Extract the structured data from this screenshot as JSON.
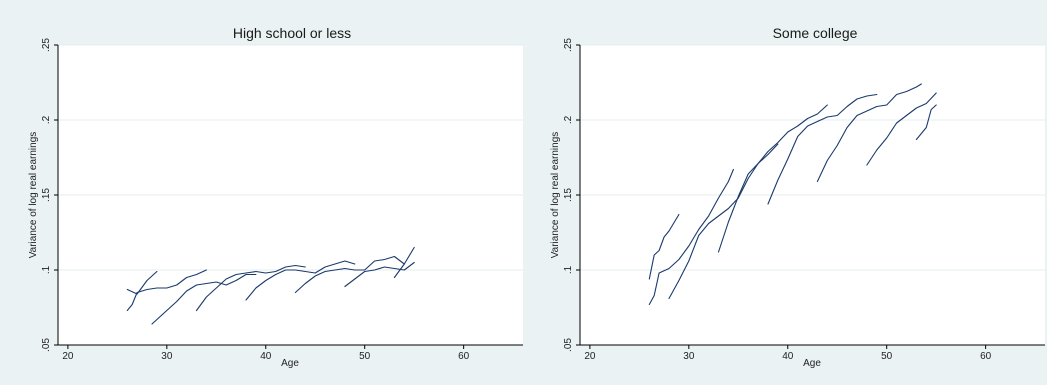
{
  "colors": {
    "page_bg": "#eaf2f3",
    "line": "#1a3a6b"
  },
  "chart_data": [
    {
      "type": "line",
      "title": "High school or less",
      "xlabel": "Age",
      "ylabel": "Variance of log real earnings",
      "xlim": [
        19,
        66
      ],
      "ylim": [
        0.05,
        0.25
      ],
      "xticks": [
        20,
        30,
        40,
        50,
        60
      ],
      "yticks": [
        0.05,
        0.1,
        0.15,
        0.2,
        0.25
      ],
      "xtick_labels": [
        "20",
        "30",
        "40",
        "50",
        "60"
      ],
      "ytick_labels": [
        ".05",
        ".1",
        ".15",
        ".2",
        ".25"
      ],
      "grid": true,
      "series": [
        {
          "points": [
            [
              26,
              0.087
            ],
            [
              27,
              0.084
            ],
            [
              28,
              0.093
            ],
            [
              29,
              0.099
            ]
          ]
        },
        {
          "points": [
            [
              26,
              0.073
            ],
            [
              26.5,
              0.077
            ],
            [
              27,
              0.085
            ],
            [
              28,
              0.087
            ],
            [
              29,
              0.088
            ],
            [
              30,
              0.088
            ],
            [
              31,
              0.09
            ],
            [
              32,
              0.095
            ],
            [
              33,
              0.097
            ],
            [
              34,
              0.1
            ]
          ]
        },
        {
          "points": [
            [
              28.5,
              0.064
            ],
            [
              30,
              0.073
            ],
            [
              31,
              0.079
            ],
            [
              32,
              0.086
            ],
            [
              33,
              0.09
            ],
            [
              34,
              0.091
            ],
            [
              35,
              0.092
            ],
            [
              36,
              0.09
            ],
            [
              37,
              0.093
            ],
            [
              38,
              0.097
            ],
            [
              39,
              0.097
            ]
          ]
        },
        {
          "points": [
            [
              33,
              0.073
            ],
            [
              34,
              0.082
            ],
            [
              35,
              0.088
            ],
            [
              36,
              0.094
            ],
            [
              37,
              0.097
            ],
            [
              38,
              0.098
            ],
            [
              39,
              0.099
            ],
            [
              40,
              0.098
            ],
            [
              41,
              0.099
            ],
            [
              42,
              0.102
            ],
            [
              43,
              0.103
            ],
            [
              44,
              0.102
            ]
          ]
        },
        {
          "points": [
            [
              38,
              0.08
            ],
            [
              39,
              0.088
            ],
            [
              40,
              0.093
            ],
            [
              41,
              0.097
            ],
            [
              42,
              0.1
            ],
            [
              43,
              0.1
            ],
            [
              44,
              0.099
            ],
            [
              45,
              0.098
            ],
            [
              46,
              0.102
            ],
            [
              47,
              0.104
            ],
            [
              48,
              0.106
            ],
            [
              49,
              0.104
            ]
          ]
        },
        {
          "points": [
            [
              43,
              0.085
            ],
            [
              44,
              0.091
            ],
            [
              45,
              0.096
            ],
            [
              46,
              0.099
            ],
            [
              47,
              0.1
            ],
            [
              48,
              0.101
            ],
            [
              49,
              0.1
            ],
            [
              50,
              0.1
            ],
            [
              51,
              0.106
            ],
            [
              52,
              0.107
            ],
            [
              53,
              0.109
            ],
            [
              54,
              0.104
            ]
          ]
        },
        {
          "points": [
            [
              48,
              0.089
            ],
            [
              49,
              0.094
            ],
            [
              50,
              0.099
            ],
            [
              51,
              0.1
            ],
            [
              52,
              0.102
            ],
            [
              53,
              0.101
            ],
            [
              54,
              0.1
            ],
            [
              55,
              0.105
            ]
          ]
        },
        {
          "points": [
            [
              53,
              0.095
            ],
            [
              54,
              0.104
            ],
            [
              55,
              0.115
            ]
          ]
        }
      ]
    },
    {
      "type": "line",
      "title": "Some college",
      "xlabel": "Age",
      "ylabel": "Variance of log real earnings",
      "xlim": [
        19,
        66
      ],
      "ylim": [
        0.05,
        0.25
      ],
      "xticks": [
        20,
        30,
        40,
        50,
        60
      ],
      "yticks": [
        0.05,
        0.1,
        0.15,
        0.2,
        0.25
      ],
      "xtick_labels": [
        "20",
        "30",
        "40",
        "50",
        "60"
      ],
      "ytick_labels": [
        ".05",
        ".1",
        ".15",
        ".2",
        ".25"
      ],
      "grid": true,
      "series": [
        {
          "points": [
            [
              26,
              0.094
            ],
            [
              26.5,
              0.11
            ],
            [
              27,
              0.113
            ],
            [
              27.5,
              0.122
            ],
            [
              28,
              0.126
            ],
            [
              29,
              0.137
            ]
          ]
        },
        {
          "points": [
            [
              26,
              0.077
            ],
            [
              26.5,
              0.083
            ],
            [
              27,
              0.098
            ],
            [
              28,
              0.101
            ],
            [
              29,
              0.107
            ],
            [
              30,
              0.116
            ],
            [
              31,
              0.127
            ],
            [
              32,
              0.136
            ],
            [
              33,
              0.148
            ],
            [
              34,
              0.159
            ],
            [
              34.5,
              0.167
            ]
          ]
        },
        {
          "points": [
            [
              28,
              0.081
            ],
            [
              29,
              0.093
            ],
            [
              30,
              0.106
            ],
            [
              31,
              0.123
            ],
            [
              32,
              0.131
            ],
            [
              33,
              0.136
            ],
            [
              34,
              0.141
            ],
            [
              35,
              0.148
            ],
            [
              36,
              0.161
            ],
            [
              37,
              0.171
            ],
            [
              38,
              0.177
            ],
            [
              39,
              0.184
            ]
          ]
        },
        {
          "points": [
            [
              33,
              0.112
            ],
            [
              34,
              0.132
            ],
            [
              35,
              0.149
            ],
            [
              36,
              0.164
            ],
            [
              37,
              0.171
            ],
            [
              38,
              0.179
            ],
            [
              39,
              0.185
            ],
            [
              40,
              0.192
            ],
            [
              41,
              0.196
            ],
            [
              42,
              0.201
            ],
            [
              43,
              0.204
            ],
            [
              44,
              0.21
            ]
          ]
        },
        {
          "points": [
            [
              38,
              0.144
            ],
            [
              39,
              0.16
            ],
            [
              40,
              0.174
            ],
            [
              41,
              0.189
            ],
            [
              42,
              0.196
            ],
            [
              43,
              0.199
            ],
            [
              44,
              0.202
            ],
            [
              45,
              0.203
            ],
            [
              46,
              0.209
            ],
            [
              47,
              0.214
            ],
            [
              48,
              0.216
            ],
            [
              49,
              0.217
            ]
          ]
        },
        {
          "points": [
            [
              43,
              0.159
            ],
            [
              44,
              0.173
            ],
            [
              45,
              0.183
            ],
            [
              46,
              0.195
            ],
            [
              47,
              0.203
            ],
            [
              48,
              0.206
            ],
            [
              49,
              0.209
            ],
            [
              50,
              0.21
            ],
            [
              51,
              0.217
            ],
            [
              52,
              0.219
            ],
            [
              53,
              0.222
            ],
            [
              53.5,
              0.224
            ]
          ]
        },
        {
          "points": [
            [
              48,
              0.17
            ],
            [
              49,
              0.18
            ],
            [
              50,
              0.188
            ],
            [
              51,
              0.198
            ],
            [
              52,
              0.203
            ],
            [
              53,
              0.208
            ],
            [
              54,
              0.211
            ],
            [
              55,
              0.218
            ]
          ]
        },
        {
          "points": [
            [
              53,
              0.187
            ],
            [
              54,
              0.195
            ],
            [
              54.5,
              0.207
            ],
            [
              55,
              0.21
            ]
          ]
        }
      ]
    }
  ]
}
